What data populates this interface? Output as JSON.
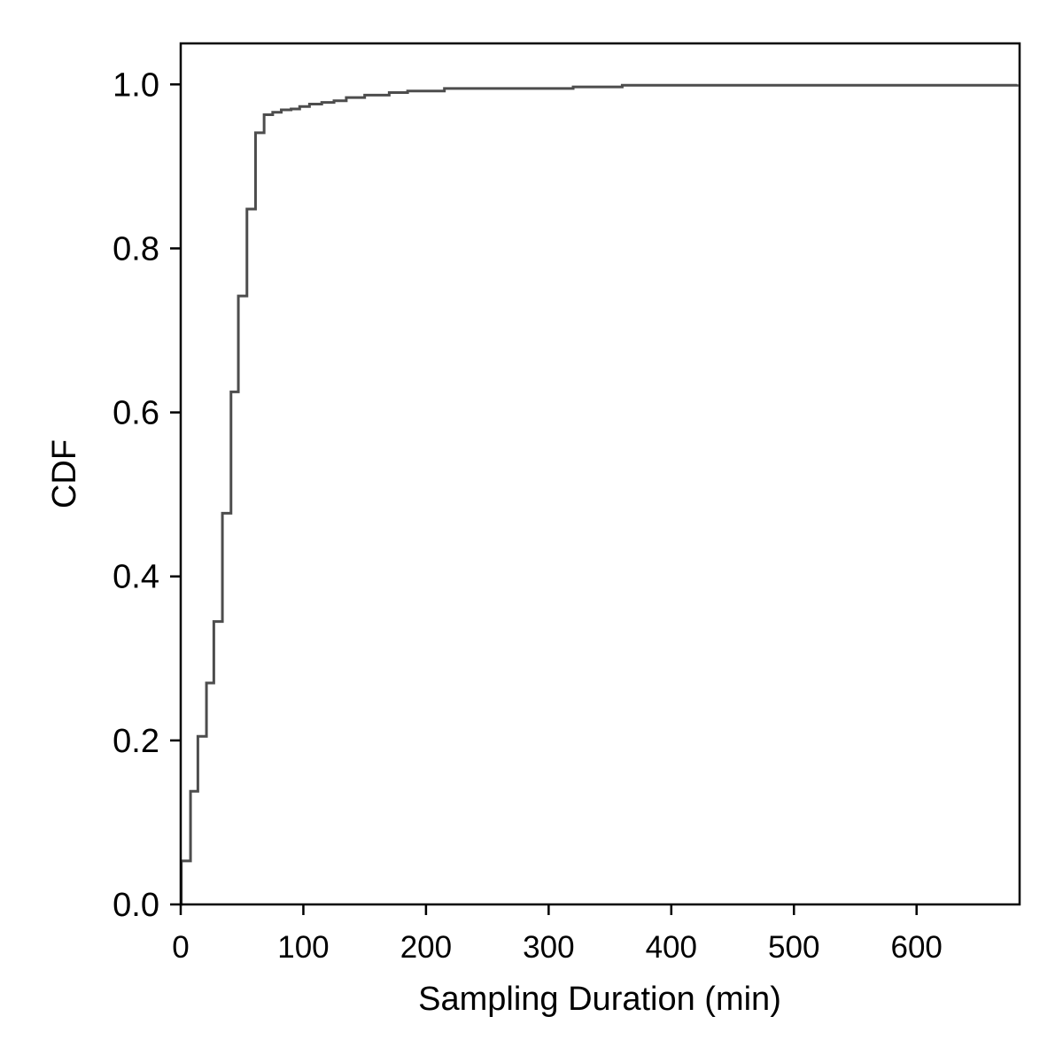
{
  "chart_data": {
    "type": "line",
    "style": "step",
    "title": "",
    "xlabel": "Sampling Duration (min)",
    "ylabel": "CDF",
    "xlim": [
      0,
      684
    ],
    "ylim": [
      0,
      1.05
    ],
    "x_ticks": [
      0,
      100,
      200,
      300,
      400,
      500,
      600
    ],
    "x_tick_labels": [
      "0",
      "100",
      "200",
      "300",
      "400",
      "500",
      "600"
    ],
    "y_ticks": [
      0.0,
      0.2,
      0.4,
      0.6,
      0.8,
      1.0
    ],
    "y_tick_labels": [
      "0.0",
      "0.2",
      "0.4",
      "0.6",
      "0.8",
      "1.0"
    ],
    "grid": false,
    "line_color": "#4d4d4d",
    "series": [
      {
        "x": [
          0,
          0.5,
          8,
          14,
          21,
          27,
          34,
          41,
          47,
          54,
          61,
          68,
          75,
          82,
          90,
          97,
          105,
          115,
          125,
          135,
          150,
          170,
          185,
          215,
          320,
          360,
          682
        ],
        "y": [
          0.0,
          0.053,
          0.138,
          0.205,
          0.27,
          0.345,
          0.477,
          0.625,
          0.742,
          0.848,
          0.941,
          0.963,
          0.966,
          0.969,
          0.97,
          0.973,
          0.976,
          0.978,
          0.98,
          0.984,
          0.987,
          0.99,
          0.992,
          0.995,
          0.997,
          0.999,
          1.0
        ]
      }
    ]
  }
}
